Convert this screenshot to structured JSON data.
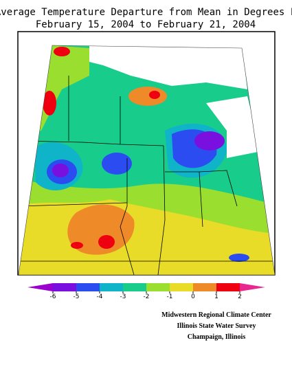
{
  "title": [
    "Average Temperature Departure from Mean in Degrees F",
    "February 15, 2004 to February 21, 2004"
  ],
  "legend": {
    "ticks": [
      -6,
      -5,
      -4,
      -3,
      -2,
      -1,
      0,
      1,
      2
    ],
    "colors": [
      "#9a00d0",
      "#7a10e0",
      "#2a4cf0",
      "#10b4c8",
      "#18cc8c",
      "#9ade30",
      "#e8dc28",
      "#ee8a28",
      "#ee0010",
      "#e82890"
    ]
  },
  "credits": [
    "Midwestern Regional Climate Center",
    "Illinois State Water Survey",
    "Champaign, Illinois"
  ]
}
